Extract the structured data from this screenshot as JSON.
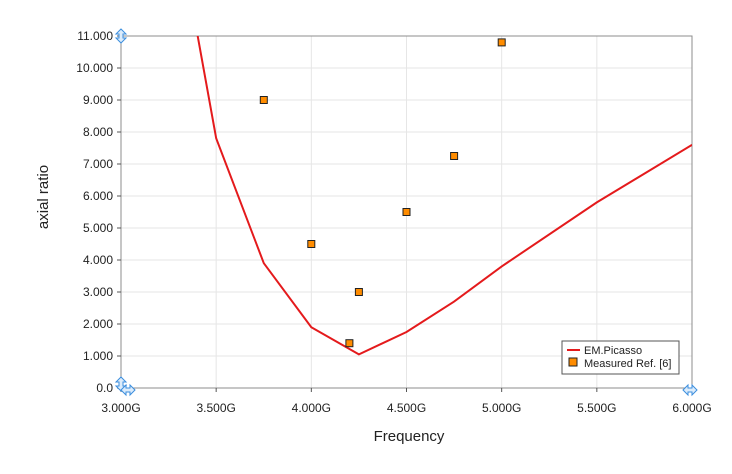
{
  "chart_data": {
    "type": "line",
    "xlabel": "Frequency",
    "ylabel": "axial ratio",
    "xlim": [
      3.0,
      6.0
    ],
    "ylim": [
      0,
      11
    ],
    "x_ticks": [
      3.0,
      3.5,
      4.0,
      4.5,
      5.0,
      5.5,
      6.0
    ],
    "x_tick_labels": [
      "3.000G",
      "3.500G",
      "4.000G",
      "4.500G",
      "5.000G",
      "5.500G",
      "6.000G"
    ],
    "y_ticks": [
      0,
      1,
      2,
      3,
      4,
      5,
      6,
      7,
      8,
      9,
      10,
      11
    ],
    "y_tick_labels": [
      "0.0",
      "1.000",
      "2.000",
      "3.000",
      "4.000",
      "5.000",
      "6.000",
      "7.000",
      "8.000",
      "9.000",
      "10.000",
      "11.000"
    ],
    "grid": true,
    "legend_position": "bottom-right",
    "series": [
      {
        "name": "EM.Picasso",
        "kind": "line",
        "color": "#e41a1c",
        "x": [
          3.4,
          3.5,
          3.75,
          4.0,
          4.25,
          4.5,
          4.75,
          5.0,
          5.5,
          6.0
        ],
        "y": [
          11.1,
          7.8,
          3.9,
          1.9,
          1.05,
          1.75,
          2.7,
          3.8,
          5.8,
          7.6
        ]
      },
      {
        "name": "Measured Ref. [6]",
        "kind": "scatter",
        "color": "#ff8c00",
        "x": [
          3.75,
          4.0,
          4.2,
          4.25,
          4.5,
          4.75,
          5.0
        ],
        "y": [
          9.0,
          4.5,
          1.4,
          3.0,
          5.5,
          7.25,
          10.8
        ]
      }
    ]
  }
}
